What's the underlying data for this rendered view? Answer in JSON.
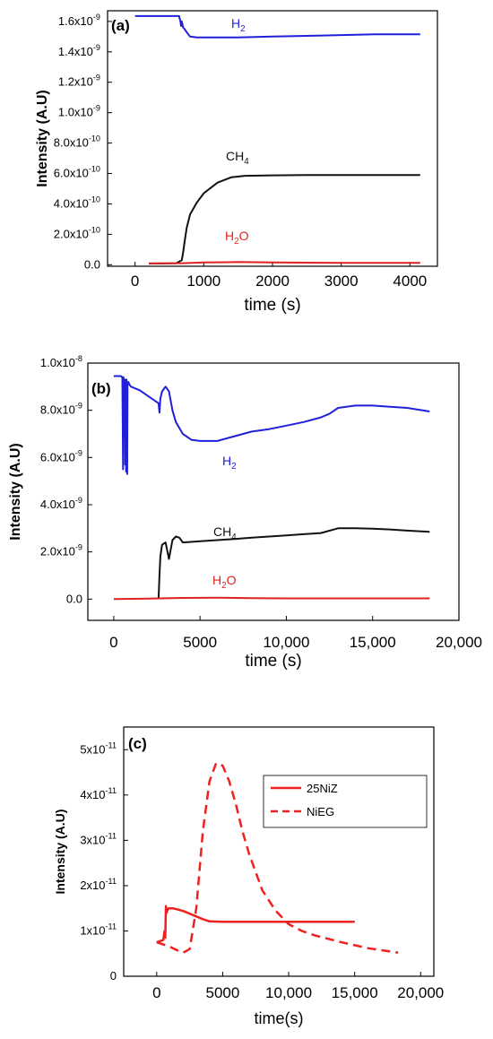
{
  "chart_data": [
    {
      "type": "line",
      "panel_label": "(a)",
      "xlabel": "time (s)",
      "ylabel": "Intensity (A.U)",
      "xlim": [
        -400,
        4400
      ],
      "ylim": [
        -1e-11,
        1.67e-09
      ],
      "x_ticks": [
        0,
        1000,
        2000,
        3000,
        4000
      ],
      "x_tick_labels": [
        "0",
        "1000",
        "2000",
        "3000",
        "4000"
      ],
      "y_ticks": [
        0,
        2e-10,
        4e-10,
        6e-10,
        8e-10,
        1e-09,
        1.2e-09,
        1.4e-09,
        1.6e-09
      ],
      "y_tick_labels": [
        {
          "base": "0.0",
          "exp": ""
        },
        {
          "base": "2.0x10",
          "exp": "-10"
        },
        {
          "base": "4.0x10",
          "exp": "-10"
        },
        {
          "base": "6.0x10",
          "exp": "-10"
        },
        {
          "base": "8.0x10",
          "exp": "-10"
        },
        {
          "base": "1.0x10",
          "exp": "-9"
        },
        {
          "base": "1.2x10",
          "exp": "-9"
        },
        {
          "base": "1.4x10",
          "exp": "-9"
        },
        {
          "base": "1.6x10",
          "exp": "-9"
        }
      ],
      "grid": false,
      "series": [
        {
          "name": "H2",
          "label_main": "H",
          "label_sub": "2",
          "color": "#2020d8",
          "x": [
            0,
            200,
            500,
            640,
            660,
            670,
            680,
            700,
            720,
            750,
            800,
            900,
            1000,
            1200,
            1500,
            2000,
            2500,
            3000,
            3500,
            4000,
            4150
          ],
          "y": [
            1.635e-09,
            1.635e-09,
            1.635e-09,
            1.635e-09,
            1.6e-09,
            1.57e-09,
            1.6e-09,
            1.56e-09,
            1.55e-09,
            1.53e-09,
            1.5e-09,
            1.495e-09,
            1.495e-09,
            1.495e-09,
            1.495e-09,
            1.5e-09,
            1.505e-09,
            1.51e-09,
            1.515e-09,
            1.515e-09,
            1.515e-09
          ]
        },
        {
          "name": "CH4",
          "label_main": "CH",
          "label_sub": "4",
          "color": "#111111",
          "x": [
            200,
            400,
            600,
            680,
            700,
            720,
            750,
            800,
            900,
            1000,
            1200,
            1400,
            1600,
            2000,
            2500,
            3000,
            3500,
            4000,
            4150
          ],
          "y": [
            8e-12,
            8e-12,
            1e-11,
            3e-11,
            8e-11,
            1.5e-10,
            2.4e-10,
            3.3e-10,
            4.1e-10,
            4.7e-10,
            5.4e-10,
            5.75e-10,
            5.85e-10,
            5.88e-10,
            5.9e-10,
            5.9e-10,
            5.9e-10,
            5.9e-10,
            5.9e-10
          ]
        },
        {
          "name": "H2O",
          "label_main": "H",
          "label_sub": "2",
          "label_tail": "O",
          "color": "#e02020",
          "x": [
            200,
            700,
            1000,
            1500,
            2000,
            3000,
            4000,
            4150
          ],
          "y": [
            8e-12,
            1e-11,
            1.5e-11,
            1.8e-11,
            1.5e-11,
            1.2e-11,
            1.2e-11,
            1.2e-11
          ]
        }
      ]
    },
    {
      "type": "line",
      "panel_label": "(b)",
      "xlabel": "time (s)",
      "ylabel": "Intensity (A.U)",
      "xlim": [
        -1500,
        20000
      ],
      "ylim": [
        -9e-10,
        1e-08
      ],
      "x_ticks": [
        0,
        5000,
        10000,
        15000,
        20000
      ],
      "x_tick_labels": [
        "0",
        "5000",
        "10,000",
        "15,000",
        "20,000"
      ],
      "y_ticks": [
        0,
        2e-09,
        4e-09,
        6e-09,
        8e-09,
        1e-08
      ],
      "y_tick_labels": [
        {
          "base": "0.0",
          "exp": ""
        },
        {
          "base": "2.0x10",
          "exp": "-9"
        },
        {
          "base": "4.0x10",
          "exp": "-9"
        },
        {
          "base": "6.0x10",
          "exp": "-9"
        },
        {
          "base": "8.0x10",
          "exp": "-9"
        },
        {
          "base": "1.0x10",
          "exp": "-8"
        }
      ],
      "grid": false,
      "series": [
        {
          "name": "H2",
          "label_main": "H",
          "label_sub": "2",
          "color": "#2020d8",
          "x": [
            0,
            400,
            500,
            540,
            560,
            580,
            600,
            620,
            640,
            660,
            680,
            700,
            720,
            740,
            760,
            780,
            800,
            850,
            900,
            1000,
            1500,
            2000,
            2600,
            2650,
            2700,
            2800,
            3000,
            3200,
            3400,
            3600,
            4000,
            4500,
            5000,
            6000,
            7000,
            8000,
            9000,
            10000,
            11000,
            12000,
            12500,
            13000,
            14000,
            15000,
            16000,
            17000,
            18300
          ],
          "y": [
            9.45e-09,
            9.45e-09,
            9.4e-09,
            5.5e-09,
            9.4e-09,
            9.3e-09,
            7e-09,
            9.3e-09,
            9.2e-09,
            5.7e-09,
            9.3e-09,
            8.5e-09,
            5.4e-09,
            9.3e-09,
            9.1e-09,
            5.3e-09,
            9.2e-09,
            9.2e-09,
            9.1e-09,
            9e-09,
            8.85e-09,
            8.6e-09,
            8.3e-09,
            7.9e-09,
            8.5e-09,
            8.8e-09,
            9e-09,
            8.8e-09,
            8e-09,
            7.5e-09,
            7e-09,
            6.75e-09,
            6.7e-09,
            6.7e-09,
            6.9e-09,
            7.1e-09,
            7.2e-09,
            7.35e-09,
            7.5e-09,
            7.7e-09,
            7.85e-09,
            8.1e-09,
            8.2e-09,
            8.2e-09,
            8.15e-09,
            8.1e-09,
            7.95e-09
          ]
        },
        {
          "name": "CH4",
          "label_main": "CH",
          "label_sub": "4",
          "color": "#111111",
          "x": [
            2600,
            2650,
            2700,
            2800,
            3000,
            3200,
            3400,
            3600,
            3800,
            4000,
            5000,
            6000,
            7000,
            8000,
            9000,
            10000,
            11000,
            12000,
            13000,
            14000,
            15000,
            16000,
            17000,
            18300
          ],
          "y": [
            0.0,
            1e-09,
            1.8e-09,
            2.3e-09,
            2.4e-09,
            1.7e-09,
            2.5e-09,
            2.65e-09,
            2.6e-09,
            2.4e-09,
            2.45e-09,
            2.5e-09,
            2.55e-09,
            2.6e-09,
            2.65e-09,
            2.7e-09,
            2.75e-09,
            2.8e-09,
            3e-09,
            3e-09,
            2.98e-09,
            2.95e-09,
            2.9e-09,
            2.85e-09
          ]
        },
        {
          "name": "H2O",
          "label_main": "H",
          "label_sub": "2",
          "label_tail": "O",
          "color": "#e02020",
          "x": [
            0,
            2000,
            4000,
            6000,
            8000,
            10000,
            14000,
            18300
          ],
          "y": [
            0.0,
            2e-11,
            5e-11,
            6e-11,
            4e-11,
            3e-11,
            3e-11,
            3e-11
          ]
        }
      ]
    },
    {
      "type": "line",
      "panel_label": "(c)",
      "xlabel": "time(s)",
      "ylabel": "Intensity (A.U)",
      "xlim": [
        -2500,
        21000
      ],
      "ylim": [
        0,
        5.5e-11
      ],
      "x_ticks": [
        0,
        5000,
        10000,
        15000,
        20000
      ],
      "x_tick_labels": [
        "0",
        "5000",
        "10,000",
        "15,000",
        "20,000"
      ],
      "y_ticks": [
        0,
        1e-11,
        2e-11,
        3e-11,
        4e-11,
        5e-11
      ],
      "y_tick_labels": [
        {
          "base": "0",
          "exp": ""
        },
        {
          "base": "1x10",
          "exp": "-11"
        },
        {
          "base": "2x10",
          "exp": "-11"
        },
        {
          "base": "3x10",
          "exp": "-11"
        },
        {
          "base": "4x10",
          "exp": "-11"
        },
        {
          "base": "5x10",
          "exp": "-11"
        }
      ],
      "grid": false,
      "legend": "top-right",
      "series": [
        {
          "name": "25NiZ",
          "color": "#ee2020",
          "dash": false,
          "x": [
            0,
            300,
            500,
            600,
            650,
            700,
            750,
            800,
            900,
            1000,
            1200,
            1500,
            2000,
            2500,
            3000,
            3500,
            4000,
            5000,
            7000,
            10000,
            12000,
            15000
          ],
          "y": [
            7.5e-12,
            7.8e-12,
            8e-12,
            1e-11,
            8.5e-12,
            1.55e-11,
            1.4e-11,
            1.45e-11,
            1.5e-11,
            1.5e-11,
            1.5e-11,
            1.48e-11,
            1.44e-11,
            1.38e-11,
            1.32e-11,
            1.26e-11,
            1.21e-11,
            1.2e-11,
            1.2e-11,
            1.2e-11,
            1.2e-11,
            1.2e-11
          ]
        },
        {
          "name": "NiEG",
          "color": "#ee2020",
          "dash": true,
          "x": [
            0,
            500,
            1000,
            1500,
            2000,
            2500,
            3000,
            3500,
            4000,
            4500,
            5000,
            5500,
            6000,
            6500,
            7000,
            8000,
            9000,
            10000,
            11000,
            12000,
            14000,
            16000,
            18300
          ],
          "y": [
            7.5e-12,
            7e-12,
            6.5e-12,
            5.8e-12,
            5.2e-12,
            6e-12,
            1.5e-11,
            3.2e-11,
            4.3e-11,
            4.7e-11,
            4.65e-11,
            4.3e-11,
            3.8e-11,
            3.2e-11,
            2.7e-11,
            1.9e-11,
            1.45e-11,
            1.15e-11,
            1e-11,
            9e-12,
            7.5e-12,
            6.2e-12,
            5.2e-12
          ]
        }
      ]
    }
  ]
}
